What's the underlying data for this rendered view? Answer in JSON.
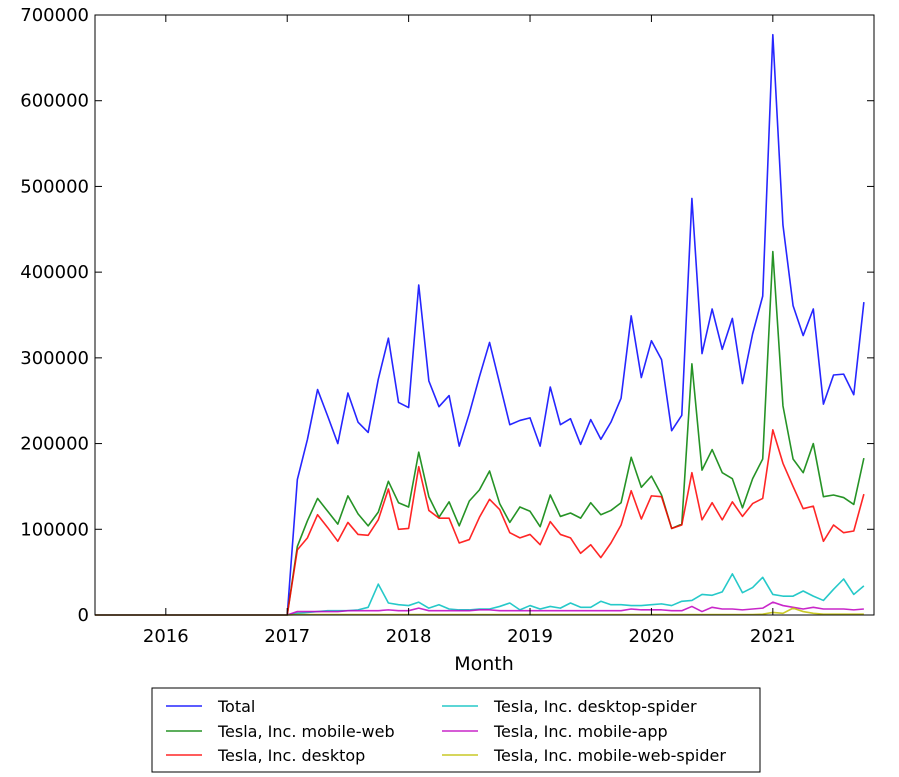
{
  "chart_data": {
    "type": "line",
    "xlabel": "Month",
    "ylabel": "",
    "ylim": [
      0,
      700000
    ],
    "xlim": [
      "2015-06",
      "2021-11"
    ],
    "y_ticks": [
      0,
      100000,
      200000,
      300000,
      400000,
      500000,
      600000,
      700000
    ],
    "x_ticks": [
      "2016",
      "2017",
      "2018",
      "2019",
      "2020",
      "2021"
    ],
    "grid": false,
    "legend_position": "below-plot",
    "x": [
      "2015-06",
      "2015-07",
      "2015-08",
      "2015-09",
      "2015-10",
      "2015-11",
      "2015-12",
      "2016-01",
      "2016-02",
      "2016-03",
      "2016-04",
      "2016-05",
      "2016-06",
      "2016-07",
      "2016-08",
      "2016-09",
      "2016-10",
      "2016-11",
      "2016-12",
      "2017-01",
      "2017-02",
      "2017-03",
      "2017-04",
      "2017-05",
      "2017-06",
      "2017-07",
      "2017-08",
      "2017-09",
      "2017-10",
      "2017-11",
      "2017-12",
      "2018-01",
      "2018-02",
      "2018-03",
      "2018-04",
      "2018-05",
      "2018-06",
      "2018-07",
      "2018-08",
      "2018-09",
      "2018-10",
      "2018-11",
      "2018-12",
      "2019-01",
      "2019-02",
      "2019-03",
      "2019-04",
      "2019-05",
      "2019-06",
      "2019-07",
      "2019-08",
      "2019-09",
      "2019-10",
      "2019-11",
      "2019-12",
      "2020-01",
      "2020-02",
      "2020-03",
      "2020-04",
      "2020-05",
      "2020-06",
      "2020-07",
      "2020-08",
      "2020-09",
      "2020-10",
      "2020-11",
      "2020-12",
      "2021-01",
      "2021-02",
      "2021-03",
      "2021-04",
      "2021-05",
      "2021-06",
      "2021-07",
      "2021-08",
      "2021-09",
      "2021-10"
    ],
    "series": [
      {
        "name": "Total",
        "color": "#0000ff",
        "values": [
          0,
          0,
          0,
          0,
          0,
          0,
          0,
          0,
          0,
          0,
          0,
          0,
          0,
          0,
          0,
          0,
          0,
          0,
          0,
          0,
          158000,
          205000,
          263000,
          232000,
          200000,
          259000,
          225000,
          213000,
          275000,
          323000,
          248000,
          242000,
          385000,
          273000,
          243000,
          256000,
          197000,
          235000,
          278000,
          318000,
          270000,
          222000,
          227000,
          230000,
          197000,
          266000,
          222000,
          229000,
          199000,
          228000,
          205000,
          225000,
          253000,
          349000,
          277000,
          320000,
          298000,
          215000,
          233000,
          486000,
          305000,
          357000,
          310000,
          346000,
          270000,
          328000,
          372000,
          677000,
          455000,
          361000,
          326000,
          357000,
          246000,
          280000,
          281000,
          257000,
          365000
        ]
      },
      {
        "name": "Tesla, Inc. mobile-web",
        "color": "#008000",
        "values": [
          0,
          0,
          0,
          0,
          0,
          0,
          0,
          0,
          0,
          0,
          0,
          0,
          0,
          0,
          0,
          0,
          0,
          0,
          0,
          0,
          80000,
          110000,
          136000,
          121000,
          106000,
          139000,
          118000,
          104000,
          120000,
          156000,
          131000,
          126000,
          190000,
          138000,
          114000,
          132000,
          104000,
          133000,
          146000,
          168000,
          130000,
          108000,
          126000,
          121000,
          103000,
          140000,
          115000,
          119000,
          113000,
          131000,
          117000,
          122000,
          131000,
          184000,
          149000,
          162000,
          140000,
          101000,
          106000,
          293000,
          169000,
          193000,
          166000,
          159000,
          125000,
          159000,
          182000,
          424000,
          244000,
          182000,
          166000,
          200000,
          138000,
          140000,
          137000,
          129000,
          183000
        ]
      },
      {
        "name": "Tesla, Inc. desktop",
        "color": "#ff0000",
        "values": [
          0,
          0,
          0,
          0,
          0,
          0,
          0,
          0,
          0,
          0,
          0,
          0,
          0,
          0,
          0,
          0,
          0,
          0,
          0,
          0,
          76000,
          90000,
          117000,
          102000,
          86000,
          108000,
          94000,
          93000,
          111000,
          147000,
          100000,
          101000,
          173000,
          122000,
          113000,
          113000,
          84000,
          88000,
          114000,
          135000,
          123000,
          96000,
          90000,
          94000,
          82000,
          109000,
          94000,
          90000,
          72000,
          82000,
          67000,
          84000,
          105000,
          145000,
          112000,
          139000,
          138000,
          101000,
          105000,
          166000,
          111000,
          131000,
          111000,
          132000,
          115000,
          130000,
          136000,
          216000,
          177000,
          150000,
          124000,
          127000,
          86000,
          105000,
          96000,
          98000,
          141000
        ]
      },
      {
        "name": "Tesla, Inc. desktop-spider",
        "color": "#00bfbf",
        "values": [
          0,
          0,
          0,
          0,
          0,
          0,
          0,
          0,
          0,
          0,
          0,
          0,
          0,
          0,
          0,
          0,
          0,
          0,
          0,
          0,
          2000,
          3000,
          4000,
          5000,
          5000,
          5000,
          6000,
          9000,
          36000,
          14000,
          12000,
          11000,
          15000,
          8000,
          12000,
          7000,
          6000,
          6000,
          7000,
          7000,
          10000,
          14000,
          6000,
          11000,
          7000,
          10000,
          8000,
          14000,
          9000,
          9000,
          16000,
          12000,
          12000,
          11000,
          11000,
          12000,
          13000,
          11000,
          16000,
          17000,
          24000,
          23000,
          27000,
          48000,
          26000,
          32000,
          44000,
          24000,
          22000,
          22000,
          28000,
          22000,
          17000,
          30000,
          42000,
          24000,
          34000
        ]
      },
      {
        "name": "Tesla, Inc. mobile-app",
        "color": "#bf00bf",
        "values": [
          0,
          0,
          0,
          0,
          0,
          0,
          0,
          0,
          0,
          0,
          0,
          0,
          0,
          0,
          0,
          0,
          0,
          0,
          0,
          0,
          4000,
          4000,
          4000,
          4000,
          4000,
          5000,
          5000,
          5000,
          5000,
          6000,
          5000,
          5000,
          8000,
          5000,
          5000,
          5000,
          5000,
          5000,
          6000,
          6000,
          5000,
          5000,
          5000,
          5000,
          5000,
          5000,
          5000,
          5000,
          5000,
          5000,
          5000,
          5000,
          5000,
          7000,
          6000,
          6000,
          6000,
          5000,
          5000,
          10000,
          4000,
          9000,
          7000,
          7000,
          6000,
          7000,
          8000,
          15000,
          11000,
          9000,
          7000,
          9000,
          7000,
          7000,
          7000,
          6000,
          7000
        ]
      },
      {
        "name": "Tesla, Inc. mobile-web-spider",
        "color": "#bfbf00",
        "values": [
          0,
          0,
          0,
          0,
          0,
          0,
          0,
          0,
          0,
          0,
          0,
          0,
          0,
          0,
          0,
          0,
          0,
          0,
          0,
          0,
          500,
          500,
          500,
          500,
          500,
          500,
          500,
          500,
          500,
          500,
          500,
          500,
          500,
          500,
          500,
          500,
          500,
          500,
          500,
          500,
          500,
          500,
          500,
          500,
          500,
          500,
          500,
          500,
          500,
          500,
          500,
          500,
          500,
          500,
          500,
          500,
          500,
          500,
          500,
          500,
          500,
          500,
          500,
          500,
          500,
          500,
          1000,
          3000,
          2000,
          8000,
          4000,
          2000,
          1000,
          1000,
          1000,
          1000,
          1000
        ]
      }
    ]
  }
}
